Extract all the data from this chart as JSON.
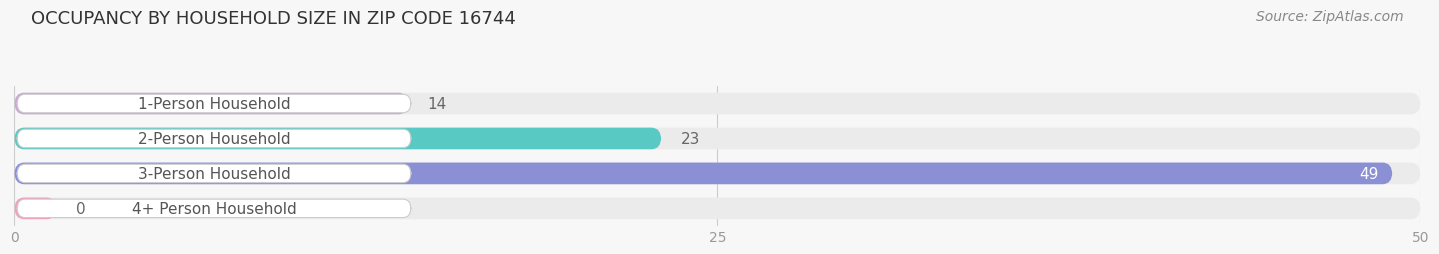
{
  "title": "OCCUPANCY BY HOUSEHOLD SIZE IN ZIP CODE 16744",
  "source": "Source: ZipAtlas.com",
  "categories": [
    "1-Person Household",
    "2-Person Household",
    "3-Person Household",
    "4+ Person Household"
  ],
  "values": [
    14,
    23,
    49,
    0
  ],
  "bar_colors": [
    "#c9a8d4",
    "#59c9c4",
    "#8b8fd4",
    "#f4a0b8"
  ],
  "bar_bg_color": "#ebebeb",
  "background_color": "#f7f7f7",
  "xlim_max": 50,
  "xticks": [
    0,
    25,
    50
  ],
  "title_fontsize": 13,
  "label_fontsize": 11,
  "value_fontsize": 11,
  "source_fontsize": 10,
  "bar_height": 0.62,
  "value_color_inside": "#ffffff",
  "value_color_outside": "#666666"
}
